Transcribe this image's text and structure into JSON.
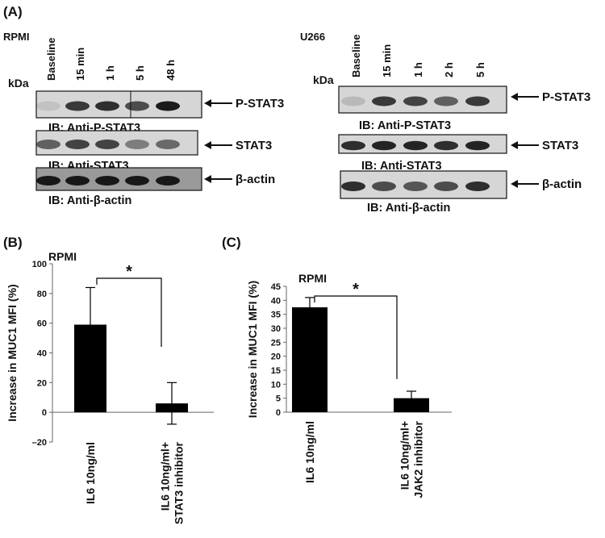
{
  "panel_a": {
    "label": "(A)",
    "left": {
      "cell": "RPMI",
      "kda": "kDa",
      "lanes": [
        "Baseline",
        "15 min",
        "1 h",
        "5 h",
        "48 h"
      ],
      "blots": [
        {
          "target": "P-STAT3",
          "ib": "IB: Anti-P-STAT3"
        },
        {
          "target": "STAT3",
          "ib": "IB: Anti-STAT3"
        },
        {
          "target": "β-actin",
          "ib": "IB: Anti-β-actin"
        }
      ]
    },
    "right": {
      "cell": "U266",
      "kda": "kDa",
      "lanes": [
        "Baseline",
        "15 min",
        "1 h",
        "2 h",
        "5 h"
      ],
      "blots": [
        {
          "target": "P-STAT3",
          "ib": "IB: Anti-P-STAT3"
        },
        {
          "target": "STAT3",
          "ib": "IB: Anti-STAT3"
        },
        {
          "target": "β-actin",
          "ib": "IB: Anti-β-actin"
        }
      ]
    }
  },
  "chart_data": [
    {
      "type": "bar",
      "panel": "(B)",
      "title": "RPMI",
      "y_label": "Increase in MUC1 MFI (%)",
      "categories": [
        [
          "IL6 10ng/ml"
        ],
        [
          "IL6 10ng/ml+",
          "STAT3 inhibitor"
        ]
      ],
      "values": [
        59,
        6
      ],
      "errors": [
        25,
        14
      ],
      "color": "#000000",
      "ylim": [
        -20,
        100
      ],
      "yticks": [
        {
          "value": -20,
          "label": "–20"
        },
        0,
        20,
        40,
        60,
        80,
        100
      ],
      "annotation": "*"
    },
    {
      "type": "bar",
      "panel": "(C)",
      "title": "RPMI",
      "y_label": "Increase in MUC1 MFI (%)",
      "categories": [
        [
          "IL6 10ng/ml"
        ],
        [
          "IL6 10ng/ml+",
          "JAK2 inhibitor"
        ]
      ],
      "values": [
        37.5,
        5
      ],
      "errors": [
        3.5,
        2.5
      ],
      "color": "#000000",
      "ylim": [
        0,
        45
      ],
      "yticks": [
        0,
        5,
        10,
        15,
        20,
        25,
        30,
        35,
        40,
        45
      ],
      "annotation": "*"
    }
  ]
}
